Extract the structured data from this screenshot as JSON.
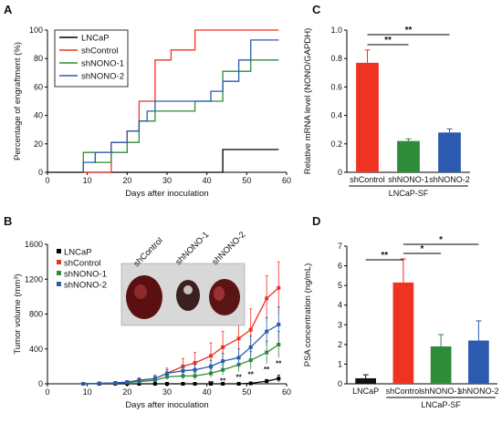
{
  "chart_data": [
    {
      "panel": "A",
      "type": "line",
      "step": true,
      "xlabel": "Days after inoculation",
      "ylabel": "Percentage of engraftment (%)",
      "xlim": [
        0,
        60
      ],
      "ylim": [
        0,
        100
      ],
      "xticks": [
        "0",
        "10",
        "20",
        "30",
        "40",
        "50",
        "60"
      ],
      "yticks": [
        "0",
        "20",
        "40",
        "60",
        "80",
        "100"
      ],
      "legend": "top-left",
      "series": [
        {
          "name": "LNCaP",
          "color": "#000000",
          "x": [
            0,
            44,
            44,
            58
          ],
          "y": [
            0,
            0,
            16,
            16
          ]
        },
        {
          "name": "shControl",
          "color": "#ee3323",
          "x": [
            9,
            16,
            16,
            20,
            20,
            23,
            23,
            27,
            27,
            31,
            31,
            37,
            37,
            58
          ],
          "y": [
            0,
            0,
            21,
            21,
            29,
            29,
            50,
            50,
            79,
            79,
            86,
            86,
            100,
            100
          ]
        },
        {
          "name": "shNONO-1",
          "color": "#2e8b3a",
          "x": [
            9,
            9,
            12,
            12,
            16,
            16,
            20,
            20,
            23,
            23,
            27,
            27,
            37,
            37,
            44,
            44,
            51,
            51,
            58
          ],
          "y": [
            0,
            14,
            14,
            7,
            7,
            14,
            14,
            21,
            21,
            36,
            36,
            43,
            43,
            50,
            50,
            71,
            71,
            79,
            79
          ]
        },
        {
          "name": "shNONO-2",
          "color": "#2a5bb0",
          "x": [
            9,
            9,
            12,
            12,
            16,
            16,
            20,
            20,
            23,
            23,
            25,
            25,
            27,
            27,
            41,
            41,
            44,
            44,
            48,
            48,
            51,
            51,
            58
          ],
          "y": [
            0,
            7,
            7,
            14,
            14,
            21,
            21,
            29,
            29,
            36,
            36,
            43,
            43,
            50,
            50,
            57,
            57,
            64,
            64,
            79,
            79,
            93,
            93
          ]
        }
      ]
    },
    {
      "panel": "B",
      "type": "line",
      "xlabel": "Days after inoculation",
      "ylabel": "Tumor volume (mm³)",
      "xlim": [
        0,
        60
      ],
      "ylim": [
        0,
        1600
      ],
      "xticks": [
        "0",
        "10",
        "20",
        "30",
        "40",
        "50",
        "60"
      ],
      "yticks": [
        "0",
        "400",
        "800",
        "1200",
        "1600"
      ],
      "legend": "top-left",
      "inset_labels": [
        "shControl",
        "shNONO-1",
        "shNONO-2"
      ],
      "x": [
        9,
        13,
        17,
        20,
        23,
        27,
        30,
        34,
        37,
        41,
        44,
        48,
        51,
        55,
        58
      ],
      "series": [
        {
          "name": "LNCaP",
          "color": "#000000",
          "marker": "square",
          "values": [
            0,
            0,
            0,
            0,
            0,
            0,
            0,
            0,
            0,
            0,
            0,
            0,
            5,
            30,
            60
          ],
          "err": [
            0,
            0,
            0,
            0,
            0,
            0,
            0,
            0,
            0,
            0,
            0,
            0,
            10,
            20,
            40
          ]
        },
        {
          "name": "shControl",
          "color": "#ee3323",
          "marker": "square",
          "values": [
            0,
            5,
            10,
            20,
            40,
            60,
            120,
            200,
            240,
            320,
            420,
            520,
            620,
            980,
            1100
          ],
          "err": [
            0,
            5,
            10,
            15,
            30,
            40,
            60,
            90,
            120,
            150,
            180,
            200,
            240,
            260,
            300
          ]
        },
        {
          "name": "shNONO-1",
          "color": "#2e8b3a",
          "marker": "square",
          "values": [
            0,
            5,
            8,
            15,
            25,
            40,
            80,
            90,
            90,
            120,
            160,
            220,
            270,
            360,
            450
          ],
          "err": [
            0,
            5,
            5,
            10,
            15,
            20,
            30,
            40,
            40,
            50,
            60,
            80,
            100,
            130,
            150
          ]
        },
        {
          "name": "shNONO-2",
          "color": "#2a5bb0",
          "marker": "square",
          "values": [
            0,
            5,
            10,
            20,
            40,
            60,
            120,
            150,
            160,
            200,
            260,
            300,
            420,
            600,
            680
          ],
          "err": [
            0,
            5,
            10,
            15,
            20,
            30,
            40,
            50,
            60,
            70,
            90,
            100,
            130,
            160,
            200
          ]
        }
      ],
      "annotations": [
        {
          "x": 37,
          "text": "*"
        },
        {
          "x": 41,
          "text": "**"
        },
        {
          "x": 44,
          "text": "**"
        },
        {
          "x": 48,
          "text": "**"
        },
        {
          "x": 51,
          "text": "**"
        },
        {
          "x": 55,
          "text": "**"
        },
        {
          "x": 58,
          "text": "**"
        }
      ]
    },
    {
      "panel": "C",
      "type": "bar",
      "categories": [
        "shControl",
        "shNONO-1",
        "shNONO-2"
      ],
      "group_label": "LNCaP-SF",
      "ylabel": "Relative mRNA level (NONO/GAPDH)",
      "ylim": [
        0,
        1.0
      ],
      "yticks": [
        "0",
        "0.2",
        "0.4",
        "0.6",
        "0.8",
        "1.0"
      ],
      "values": [
        0.77,
        0.22,
        0.28
      ],
      "err": [
        0.09,
        0.015,
        0.025
      ],
      "colors": [
        "#ee3323",
        "#2e8b3a",
        "#2a5bb0"
      ],
      "significance": [
        {
          "from": 0,
          "to": 1,
          "text": "**"
        },
        {
          "from": 0,
          "to": 2,
          "text": "**"
        }
      ]
    },
    {
      "panel": "D",
      "type": "bar",
      "categories": [
        "LNCaP",
        "shControl",
        "shNONO-1",
        "shNONO-2"
      ],
      "group_label": "LNCaP-SF",
      "ylabel": "PSA concentration (ng/mL)",
      "ylim": [
        0,
        7
      ],
      "yticks": [
        "0",
        "1",
        "2",
        "3",
        "4",
        "5",
        "6",
        "7"
      ],
      "values": [
        0.28,
        5.15,
        1.9,
        2.2
      ],
      "err": [
        0.18,
        1.2,
        0.6,
        1.0
      ],
      "colors": [
        "#111111",
        "#ee3323",
        "#2e8b3a",
        "#2a5bb0"
      ],
      "significance": [
        {
          "from": 0,
          "to": 1,
          "text": "**"
        },
        {
          "from": 1,
          "to": 2,
          "text": "*"
        },
        {
          "from": 1,
          "to": 3,
          "text": "*"
        }
      ]
    }
  ]
}
